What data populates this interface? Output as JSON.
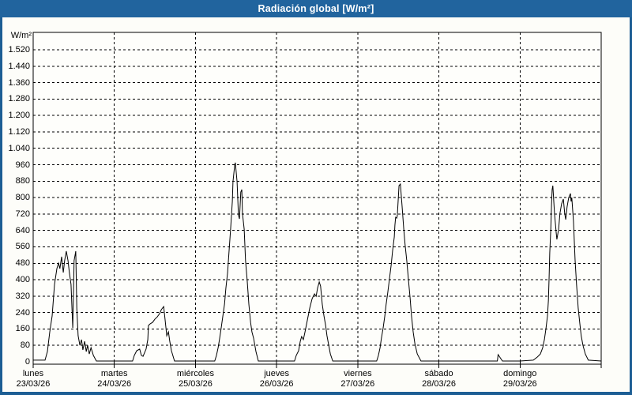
{
  "window": {
    "title": "Radiación global [W/m²]"
  },
  "colors": {
    "titlebar": "#21649e",
    "frame_border": "#1d5e94",
    "content_bg": "#fdfdf9",
    "plot_bg": "#fefefb",
    "grid": "#000000",
    "line": "#000000",
    "text": "#000000",
    "title_text": "#ffffff"
  },
  "chart_data": {
    "type": "line",
    "title": "Radiación global [W/m²]",
    "ylabel": "W/m²",
    "ylim": [
      0,
      1600
    ],
    "ytick_step": 80,
    "ytick_labels": [
      "0",
      "80",
      "160",
      "240",
      "320",
      "400",
      "480",
      "560",
      "640",
      "720",
      "800",
      "880",
      "960",
      "1.040",
      "1.120",
      "1.200",
      "1.280",
      "1.360",
      "1.440",
      "1.520"
    ],
    "grid": "dashed",
    "legend": "none",
    "x_axis": {
      "unit": "hours-from-monday-00h",
      "range_hours": [
        0,
        168
      ],
      "tick_hours": [
        0,
        24,
        48,
        72,
        96,
        120,
        144,
        168
      ],
      "gridline_hours": [
        24,
        48,
        72,
        96,
        120,
        144
      ]
    },
    "categories": [
      {
        "day": "lunes",
        "date": "23/03/26",
        "label_hour": 0
      },
      {
        "day": "martes",
        "date": "24/03/26",
        "label_hour": 24
      },
      {
        "day": "miércoles",
        "date": "25/03/26",
        "label_hour": 48
      },
      {
        "day": "jueves",
        "date": "26/03/26",
        "label_hour": 72
      },
      {
        "day": "viernes",
        "date": "27/03/26",
        "label_hour": 96
      },
      {
        "day": "sábado",
        "date": "28/03/26",
        "label_hour": 120
      },
      {
        "day": "domingo",
        "date": "29/03/26",
        "label_hour": 144
      }
    ],
    "daily_peaks_wm2": [
      539,
      269,
      970,
      389,
      866,
      35,
      858
    ],
    "series": [
      {
        "name": "Radiación global",
        "unit": "W/m²",
        "points_hour_value": [
          [
            0,
            8
          ],
          [
            3.5,
            8
          ],
          [
            4.2,
            50
          ],
          [
            4.9,
            146
          ],
          [
            5.6,
            223
          ],
          [
            6.3,
            377
          ],
          [
            7.0,
            454
          ],
          [
            7.5,
            481
          ],
          [
            7.9,
            454
          ],
          [
            8.4,
            512
          ],
          [
            8.9,
            435
          ],
          [
            9.3,
            493
          ],
          [
            9.8,
            539
          ],
          [
            10.3,
            493
          ],
          [
            10.7,
            435
          ],
          [
            11.2,
            377
          ],
          [
            11.7,
            165
          ],
          [
            12.1,
            493
          ],
          [
            12.6,
            539
          ],
          [
            12.9,
            262
          ],
          [
            13.3,
            127
          ],
          [
            13.8,
            81
          ],
          [
            14.3,
            108
          ],
          [
            14.7,
            58
          ],
          [
            15.2,
            100
          ],
          [
            15.7,
            50
          ],
          [
            16.1,
            81
          ],
          [
            16.6,
            38
          ],
          [
            17.1,
            69
          ],
          [
            17.8,
            31
          ],
          [
            18.7,
            4
          ],
          [
            29.4,
            4
          ],
          [
            29.9,
            31
          ],
          [
            30.6,
            54
          ],
          [
            31.5,
            62
          ],
          [
            32.0,
            31
          ],
          [
            32.5,
            27
          ],
          [
            33.4,
            62
          ],
          [
            33.9,
            108
          ],
          [
            34.1,
            177
          ],
          [
            34.6,
            185
          ],
          [
            35.3,
            192
          ],
          [
            36.0,
            208
          ],
          [
            36.7,
            219
          ],
          [
            37.4,
            235
          ],
          [
            37.9,
            254
          ],
          [
            38.6,
            269
          ],
          [
            39.0,
            208
          ],
          [
            39.5,
            127
          ],
          [
            40.0,
            146
          ],
          [
            40.4,
            100
          ],
          [
            40.9,
            54
          ],
          [
            41.8,
            4
          ],
          [
            53.7,
            4
          ],
          [
            54.2,
            31
          ],
          [
            54.7,
            69
          ],
          [
            55.1,
            108
          ],
          [
            55.6,
            165
          ],
          [
            56.1,
            223
          ],
          [
            56.6,
            281
          ],
          [
            57.0,
            358
          ],
          [
            57.5,
            435
          ],
          [
            57.9,
            531
          ],
          [
            58.4,
            646
          ],
          [
            58.9,
            781
          ],
          [
            59.1,
            877
          ],
          [
            59.6,
            958
          ],
          [
            59.8,
            970
          ],
          [
            60.3,
            877
          ],
          [
            60.7,
            716
          ],
          [
            61.0,
            696
          ],
          [
            61.4,
            827
          ],
          [
            61.7,
            839
          ],
          [
            61.9,
            723
          ],
          [
            62.4,
            646
          ],
          [
            62.8,
            493
          ],
          [
            63.3,
            396
          ],
          [
            63.8,
            281
          ],
          [
            64.3,
            192
          ],
          [
            64.7,
            146
          ],
          [
            65.2,
            115
          ],
          [
            65.9,
            50
          ],
          [
            66.6,
            4
          ],
          [
            77.3,
            4
          ],
          [
            77.8,
            31
          ],
          [
            78.5,
            54
          ],
          [
            79.0,
            100
          ],
          [
            79.4,
            123
          ],
          [
            79.9,
            108
          ],
          [
            80.4,
            146
          ],
          [
            81.1,
            204
          ],
          [
            81.8,
            262
          ],
          [
            82.5,
            308
          ],
          [
            83.2,
            331
          ],
          [
            83.7,
            319
          ],
          [
            84.1,
            358
          ],
          [
            84.6,
            389
          ],
          [
            85.0,
            369
          ],
          [
            85.5,
            281
          ],
          [
            86.0,
            223
          ],
          [
            86.5,
            177
          ],
          [
            86.9,
            127
          ],
          [
            87.4,
            81
          ],
          [
            87.9,
            38
          ],
          [
            88.6,
            4
          ],
          [
            101.6,
            4
          ],
          [
            102.1,
            31
          ],
          [
            102.6,
            69
          ],
          [
            103.0,
            115
          ],
          [
            103.5,
            165
          ],
          [
            104.0,
            223
          ],
          [
            104.4,
            281
          ],
          [
            104.9,
            339
          ],
          [
            105.4,
            408
          ],
          [
            105.9,
            473
          ],
          [
            106.3,
            539
          ],
          [
            106.8,
            608
          ],
          [
            107.0,
            666
          ],
          [
            107.2,
            704
          ],
          [
            107.5,
            700
          ],
          [
            107.7,
            712
          ],
          [
            108.2,
            858
          ],
          [
            108.6,
            866
          ],
          [
            109.1,
            762
          ],
          [
            109.6,
            646
          ],
          [
            110.0,
            569
          ],
          [
            110.5,
            493
          ],
          [
            111.0,
            396
          ],
          [
            111.5,
            308
          ],
          [
            111.9,
            223
          ],
          [
            112.4,
            146
          ],
          [
            112.9,
            88
          ],
          [
            113.6,
            38
          ],
          [
            114.7,
            4
          ],
          [
            126.2,
            4
          ],
          [
            137.3,
            4
          ],
          [
            137.5,
            35
          ],
          [
            138.8,
            4
          ],
          [
            144.0,
            4
          ],
          [
            147.9,
            8
          ],
          [
            149.1,
            23
          ],
          [
            150.0,
            38
          ],
          [
            150.7,
            69
          ],
          [
            151.2,
            108
          ],
          [
            151.7,
            165
          ],
          [
            152.1,
            223
          ],
          [
            152.4,
            300
          ],
          [
            152.6,
            415
          ],
          [
            152.8,
            531
          ],
          [
            153.1,
            646
          ],
          [
            153.3,
            762
          ],
          [
            153.5,
            839
          ],
          [
            153.7,
            858
          ],
          [
            154.2,
            723
          ],
          [
            154.7,
            627
          ],
          [
            154.9,
            596
          ],
          [
            155.4,
            646
          ],
          [
            155.8,
            723
          ],
          [
            156.3,
            770
          ],
          [
            156.8,
            793
          ],
          [
            157.2,
            723
          ],
          [
            157.5,
            693
          ],
          [
            157.9,
            754
          ],
          [
            158.4,
            800
          ],
          [
            158.9,
            820
          ],
          [
            159.1,
            781
          ],
          [
            159.3,
            800
          ],
          [
            159.8,
            685
          ],
          [
            160.3,
            493
          ],
          [
            160.7,
            377
          ],
          [
            161.2,
            262
          ],
          [
            161.7,
            185
          ],
          [
            162.1,
            127
          ],
          [
            162.6,
            81
          ],
          [
            163.3,
            38
          ],
          [
            164.2,
            8
          ],
          [
            168,
            4
          ]
        ]
      }
    ]
  }
}
